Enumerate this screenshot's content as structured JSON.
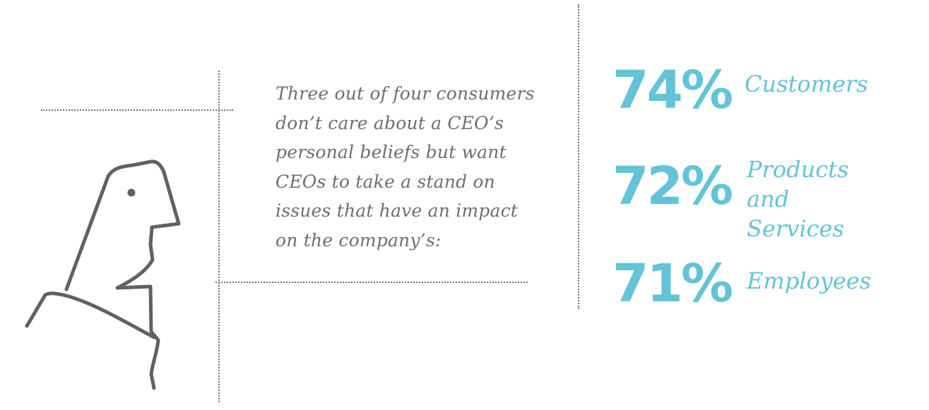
{
  "colors": {
    "accent": "#63c3d8",
    "text": "#6b6e73",
    "line": "#5e6166"
  },
  "illustration": {
    "icon": "person-profile-icon"
  },
  "quote": {
    "text": "Three out of four consumers\ndon’t care about a CEO’s\npersonal beliefs but want\nCEOs to take a stand on\nissues that have an impact\non the company’s:"
  },
  "stats": [
    {
      "value": "74%",
      "label": "Customers"
    },
    {
      "value": "72%",
      "label": "Products\nand Services"
    },
    {
      "value": "71%",
      "label": "Employees"
    }
  ]
}
